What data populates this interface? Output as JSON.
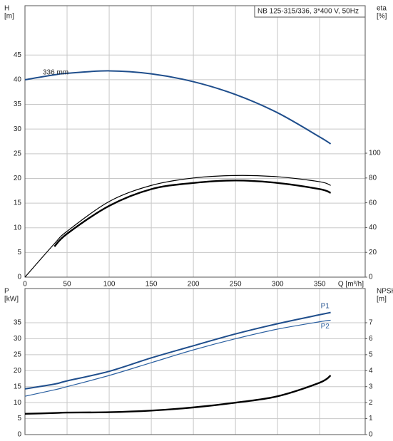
{
  "chart_data": [
    {
      "type": "line",
      "title": "NB 125-315/336, 3*400 V, 50Hz",
      "annotation": "336 mm",
      "y_label": [
        "H",
        "[m]"
      ],
      "y2_label": [
        "eta",
        "[%]"
      ],
      "x_label": "Q [m³/h]",
      "x": [
        0,
        35,
        50,
        100,
        150,
        200,
        250,
        300,
        350,
        363
      ],
      "xlim": [
        0,
        404
      ],
      "xticks": [
        0,
        50,
        100,
        150,
        200,
        250,
        300,
        350
      ],
      "xtick_labels": true,
      "ylim": [
        0,
        55
      ],
      "yticks": [
        0,
        5,
        10,
        15,
        20,
        25,
        30,
        35,
        40,
        45
      ],
      "y2lim": [
        0,
        219
      ],
      "y2ticks": [
        0,
        20,
        40,
        60,
        80,
        100
      ],
      "grid": true,
      "series": [
        {
          "color": "#1f4e8c",
          "linewidth": 2,
          "values": [
            40,
            41,
            41.3,
            41.8,
            41.2,
            39.6,
            37,
            33.3,
            28.4,
            27
          ]
        },
        {
          "color": "#000000",
          "linewidth": 1.2,
          "axis": "y2",
          "values": [
            0,
            27,
            37,
            61,
            74,
            80,
            82,
            81,
            77,
            74
          ]
        },
        {
          "color": "#000000",
          "linewidth": 2.4,
          "axis": "y2",
          "values": [
            null,
            24.7,
            35,
            57.5,
            71,
            76,
            78,
            76,
            71,
            68
          ]
        }
      ]
    },
    {
      "type": "line",
      "y_label": [
        "P",
        "[kW]"
      ],
      "y2_label": [
        "NPSH",
        "[m]"
      ],
      "x": [
        0,
        35,
        50,
        100,
        150,
        200,
        250,
        300,
        350,
        363
      ],
      "xlim": [
        0,
        404
      ],
      "xticks": [
        0,
        50,
        100,
        150,
        200,
        250,
        300,
        350
      ],
      "xtick_labels": false,
      "ylim": [
        0,
        45.7
      ],
      "yticks": [
        0,
        5,
        10,
        15,
        20,
        25,
        30,
        35
      ],
      "y2lim": [
        0,
        9.14
      ],
      "y2ticks": [
        0,
        1,
        2,
        3,
        4,
        5,
        6,
        7
      ],
      "grid": true,
      "series": [
        {
          "name": "P1",
          "color": "#1f4e8c",
          "linewidth": 2,
          "values": [
            14.3,
            15.8,
            16.8,
            19.8,
            24,
            27.8,
            31.5,
            34.7,
            37.5,
            38.2
          ]
        },
        {
          "name": "P2",
          "color": "#2a5fa0",
          "linewidth": 1.2,
          "values": [
            12,
            14,
            15,
            18.5,
            22.5,
            26.5,
            30,
            33,
            35.3,
            35.8
          ]
        },
        {
          "color": "#000000",
          "linewidth": 2.4,
          "axis": "y2",
          "values": [
            1.3,
            1.35,
            1.38,
            1.4,
            1.5,
            1.7,
            2.0,
            2.4,
            3.25,
            3.7
          ]
        }
      ]
    }
  ]
}
